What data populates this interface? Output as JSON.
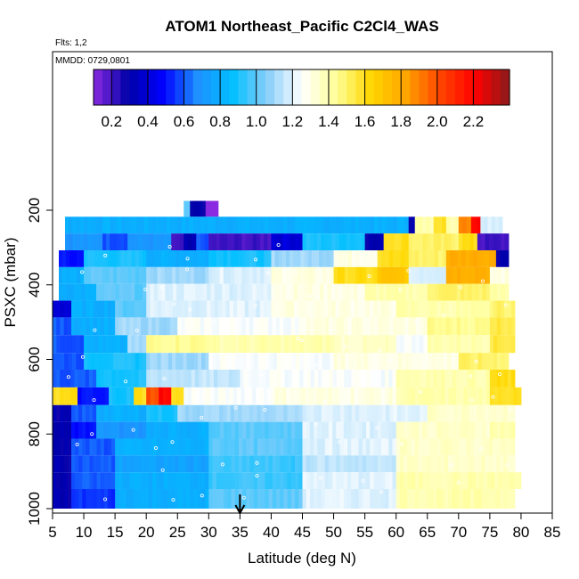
{
  "chart_data": {
    "type": "heatmap",
    "title": "ATOM1 Northeast_Pacific C2Cl4_WAS",
    "flights_note": "Flts: 1,2",
    "date_note": "MMDD: 0729,0801",
    "xlabel": "Latitude (deg N)",
    "ylabel": "PSXC (mbar)",
    "xlim": [
      5,
      85
    ],
    "ylim": [
      1000,
      0
    ],
    "x_ticks": [
      "5",
      "10",
      "15",
      "20",
      "25",
      "30",
      "35",
      "40",
      "45",
      "50",
      "55",
      "60",
      "65",
      "70",
      "75",
      "80",
      "85"
    ],
    "y_ticks": [
      "200",
      "400",
      "600",
      "800",
      "1000"
    ],
    "colorbar": {
      "range": [
        0.1,
        2.4
      ],
      "tick_labels": [
        "0.2",
        "0.4",
        "0.6",
        "0.8",
        "1.0",
        "1.2",
        "1.4",
        "1.6",
        "1.8",
        "2.0",
        "2.2"
      ],
      "colors": [
        "#8a2be2",
        "#0000a8",
        "#0000ff",
        "#1e90ff",
        "#00bfff",
        "#87cefa",
        "#ffffff",
        "#ffff99",
        "#ffd700",
        "#ffa500",
        "#ff4500",
        "#ff0000",
        "#8b1a1a"
      ]
    },
    "arrow_latitude": 35,
    "colors": {
      "sample_dot": "#ffffff",
      "frame": "#000000"
    },
    "profiles": [
      {
        "p": 195,
        "segments": [
          [
            26,
            27,
            1.0
          ],
          [
            27,
            29.5,
            0.3
          ],
          [
            29.5,
            31.5,
            0.1
          ]
        ]
      },
      {
        "p": 240,
        "segments": [
          [
            7,
            54,
            0.8
          ],
          [
            54,
            62,
            0.8
          ],
          [
            62,
            63,
            0.3
          ],
          [
            63,
            66,
            1.4
          ],
          [
            66,
            68,
            1.6
          ],
          [
            68,
            70,
            1.4
          ],
          [
            70,
            72,
            1.9
          ],
          [
            72,
            73.5,
            2.2
          ],
          [
            73.5,
            77,
            1.2
          ]
        ]
      },
      {
        "p": 285,
        "segments": [
          [
            7,
            13,
            0.7
          ],
          [
            13,
            17,
            0.6
          ],
          [
            17,
            24,
            0.7
          ],
          [
            24,
            26,
            0.2
          ],
          [
            26,
            28,
            0.3
          ],
          [
            28,
            30,
            0.6
          ],
          [
            30,
            40,
            0.2
          ],
          [
            40,
            45,
            0.4
          ],
          [
            45,
            55,
            0.9
          ],
          [
            55,
            58,
            0.3
          ],
          [
            58,
            62,
            1.6
          ],
          [
            62,
            66,
            1.5
          ],
          [
            66,
            70,
            1.5
          ],
          [
            70,
            73,
            1.6
          ],
          [
            73,
            78,
            0.2
          ]
        ]
      },
      {
        "p": 330,
        "segments": [
          [
            6,
            10,
            0.5
          ],
          [
            10,
            20,
            0.9
          ],
          [
            20,
            30,
            0.8
          ],
          [
            30,
            40,
            0.9
          ],
          [
            40,
            50,
            1.1
          ],
          [
            50,
            57,
            1.3
          ],
          [
            57,
            62,
            1.6
          ],
          [
            62,
            63,
            1.5
          ],
          [
            63,
            68,
            1.5
          ],
          [
            68,
            73,
            1.8
          ],
          [
            73,
            76,
            1.8
          ],
          [
            76,
            78,
            0.3
          ]
        ]
      },
      {
        "p": 375,
        "segments": [
          [
            6,
            10,
            0.8
          ],
          [
            10,
            20,
            1.0
          ],
          [
            20,
            30,
            1.1
          ],
          [
            30,
            40,
            1.2
          ],
          [
            40,
            50,
            1.3
          ],
          [
            50,
            57,
            1.6
          ],
          [
            57,
            62,
            1.7
          ],
          [
            62,
            68,
            1.2
          ],
          [
            68,
            75,
            1.8
          ],
          [
            75,
            78,
            1.3
          ]
        ]
      },
      {
        "p": 420,
        "segments": [
          [
            6,
            12,
            0.8
          ],
          [
            12,
            20,
            1.0
          ],
          [
            20,
            40,
            1.2
          ],
          [
            40,
            55,
            1.3
          ],
          [
            55,
            65,
            1.4
          ],
          [
            65,
            75,
            1.5
          ],
          [
            75,
            78,
            1.4
          ]
        ]
      },
      {
        "p": 465,
        "segments": [
          [
            5,
            8,
            0.4
          ],
          [
            8,
            15,
            0.8
          ],
          [
            15,
            20,
            1.0
          ],
          [
            20,
            40,
            1.2
          ],
          [
            40,
            60,
            1.3
          ],
          [
            60,
            75,
            1.4
          ],
          [
            75,
            79,
            1.5
          ]
        ]
      },
      {
        "p": 510,
        "segments": [
          [
            5,
            8,
            0.6
          ],
          [
            8,
            15,
            0.8
          ],
          [
            15,
            25,
            1.1
          ],
          [
            25,
            45,
            1.25
          ],
          [
            45,
            65,
            1.3
          ],
          [
            65,
            75,
            1.45
          ],
          [
            75,
            79,
            1.55
          ]
        ]
      },
      {
        "p": 560,
        "segments": [
          [
            5,
            10,
            0.6
          ],
          [
            10,
            17,
            0.8
          ],
          [
            17,
            20,
            1.1
          ],
          [
            20,
            30,
            1.45
          ],
          [
            30,
            50,
            1.4
          ],
          [
            50,
            60,
            1.35
          ],
          [
            60,
            65,
            1.25
          ],
          [
            65,
            75,
            1.4
          ],
          [
            75,
            79,
            1.55
          ]
        ]
      },
      {
        "p": 605,
        "segments": [
          [
            5,
            10,
            0.6
          ],
          [
            10,
            20,
            0.9
          ],
          [
            20,
            30,
            1.1
          ],
          [
            30,
            50,
            1.25
          ],
          [
            50,
            70,
            1.3
          ],
          [
            70,
            78,
            1.5
          ]
        ]
      },
      {
        "p": 650,
        "segments": [
          [
            5,
            12,
            0.6
          ],
          [
            12,
            20,
            0.9
          ],
          [
            20,
            35,
            1.15
          ],
          [
            35,
            60,
            1.25
          ],
          [
            60,
            75,
            1.4
          ],
          [
            75,
            79,
            1.6
          ]
        ]
      },
      {
        "p": 700,
        "segments": [
          [
            5,
            9,
            1.6
          ],
          [
            9,
            14,
            0.5
          ],
          [
            14,
            18,
            0.9
          ],
          [
            18,
            20,
            1.6
          ],
          [
            20,
            22,
            2.0
          ],
          [
            22,
            24,
            2.2
          ],
          [
            24,
            26,
            1.6
          ],
          [
            26,
            40,
            1.25
          ],
          [
            40,
            60,
            1.3
          ],
          [
            60,
            75,
            1.4
          ],
          [
            75,
            80,
            1.6
          ]
        ]
      },
      {
        "p": 745,
        "segments": [
          [
            5,
            8,
            0.3
          ],
          [
            8,
            12,
            0.6
          ],
          [
            12,
            20,
            0.8
          ],
          [
            20,
            25,
            0.9
          ],
          [
            25,
            45,
            1.1
          ],
          [
            45,
            65,
            1.2
          ],
          [
            65,
            79,
            1.35
          ]
        ]
      },
      {
        "p": 790,
        "segments": [
          [
            5,
            8,
            0.3
          ],
          [
            8,
            12,
            0.5
          ],
          [
            12,
            20,
            0.7
          ],
          [
            20,
            30,
            0.8
          ],
          [
            30,
            45,
            1.0
          ],
          [
            45,
            60,
            1.2
          ],
          [
            60,
            75,
            1.35
          ],
          [
            75,
            79,
            1.4
          ]
        ]
      },
      {
        "p": 835,
        "segments": [
          [
            5,
            8,
            0.3
          ],
          [
            8,
            15,
            0.6
          ],
          [
            15,
            30,
            0.8
          ],
          [
            30,
            45,
            1.0
          ],
          [
            45,
            60,
            1.2
          ],
          [
            60,
            79,
            1.35
          ]
        ]
      },
      {
        "p": 880,
        "segments": [
          [
            5,
            8,
            0.3
          ],
          [
            8,
            15,
            0.6
          ],
          [
            15,
            30,
            0.75
          ],
          [
            30,
            45,
            0.95
          ],
          [
            45,
            60,
            1.15
          ],
          [
            60,
            79,
            1.35
          ]
        ]
      },
      {
        "p": 925,
        "segments": [
          [
            5,
            8,
            0.3
          ],
          [
            8,
            15,
            0.6
          ],
          [
            15,
            30,
            0.8
          ],
          [
            30,
            45,
            0.95
          ],
          [
            45,
            60,
            1.2
          ],
          [
            60,
            80,
            1.4
          ]
        ]
      },
      {
        "p": 970,
        "segments": [
          [
            5,
            8,
            0.3
          ],
          [
            8,
            15,
            0.55
          ],
          [
            15,
            30,
            0.8
          ],
          [
            30,
            45,
            1.0
          ],
          [
            45,
            60,
            1.2
          ],
          [
            60,
            79,
            1.4
          ]
        ]
      }
    ]
  }
}
